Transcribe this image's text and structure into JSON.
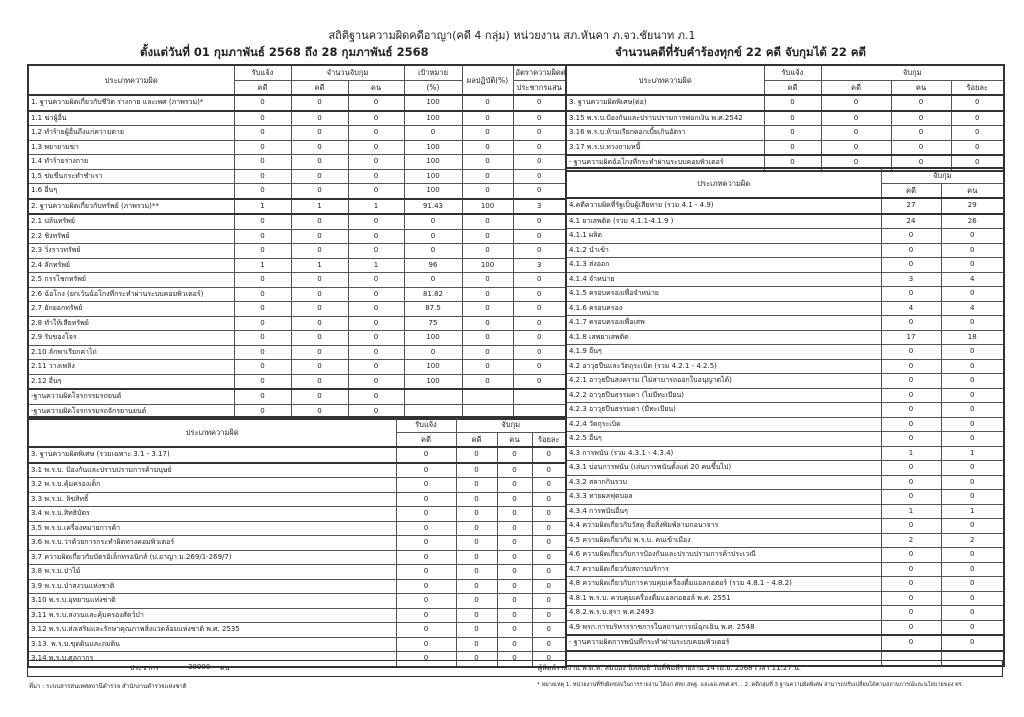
{
  "header": {
    "title": "สถิติฐานความผิดคดีอาญา(คดี 4 กลุ่ม) หน่วยงาน สภ.หันคา ภ.จว.ชัยนาท ภ.1",
    "period": "ตั้งแต่วันที่ 01 กุมภาพันธ์ 2568 ถึง 28 กุมภาพันธ์ 2568",
    "summary": "จำนวนคดีที่รับคำร้องทุกข์  22 คดี  จับกุมได้  22 คดี"
  },
  "left_table1": {
    "headers": {
      "type": "ประเภทความผิด",
      "received": "รับแจ้ง",
      "arrested": "จำนวนจับกุม",
      "target": "เป้าหมาย",
      "performance": "ผลปฏิบัติ(%)",
      "rate": "อัตราความผิดต่อ",
      "case": "คดี",
      "case2": "คดี",
      "person": "คน",
      "percent": "(%)",
      "rate2": "ประชากรแสน"
    },
    "rows": [
      [
        "1. ฐานความผิดเกี่ยวกับชีวิต ร่างกาย และเพศ (ภาพรวม)*",
        "0",
        "0",
        "0",
        "100",
        "0",
        "0"
      ],
      [
        "1.1 ฆ่าผู้อื่น",
        "0",
        "0",
        "0",
        "100",
        "0",
        "0"
      ],
      [
        "1.2 ทำร้ายผู้อื่นถึงแก่ความตาย",
        "0",
        "0",
        "0",
        "0",
        "0",
        "0"
      ],
      [
        "1.3 พยายามฆ่า",
        "0",
        "0",
        "0",
        "100",
        "0",
        "0"
      ],
      [
        "1.4 ทำร้ายร่างกาย",
        "0",
        "0",
        "0",
        "100",
        "0",
        "0"
      ],
      [
        "1.5 ข่มขืนกระทำชำเรา",
        "0",
        "0",
        "0",
        "100",
        "0",
        "0"
      ],
      [
        "1.6 อื่นๆ",
        "0",
        "0",
        "0",
        "100",
        "0",
        "0"
      ],
      [
        "2. ฐานความผิดเกี่ยวกับทรัพย์ (ภาพรวม)**",
        "1",
        "1",
        "1",
        "91.43",
        "100",
        "3"
      ],
      [
        "2.1 ปล้นทรัพย์",
        "0",
        "0",
        "0",
        "0",
        "0",
        "0"
      ],
      [
        "2.2 ชิงทรัพย์",
        "0",
        "0",
        "0",
        "0",
        "0",
        "0"
      ],
      [
        "2.3 วิ่งราวทรัพย์",
        "0",
        "0",
        "0",
        "0",
        "0",
        "0"
      ],
      [
        "2.4 ลักทรัพย์",
        "1",
        "1",
        "1",
        "96",
        "100",
        "3"
      ],
      [
        "2.5 กรรโชกทรัพย์",
        "0",
        "0",
        "0",
        "0",
        "0",
        "0"
      ],
      [
        "2.6 ฉ้อโกง (ยกเว้นฉ้อโกงที่กระทำผ่านระบบคอมพิวเตอร์)",
        "0",
        "0",
        "0",
        "81.82",
        "0",
        "0"
      ],
      [
        "2.7 ยักยอกทรัพย์",
        "0",
        "0",
        "0",
        "87.5",
        "0",
        "0"
      ],
      [
        "2.8 ทำให้เสียทรัพย์",
        "0",
        "0",
        "0",
        "75",
        "0",
        "0"
      ],
      [
        "2.9 รับของโจร",
        "0",
        "0",
        "0",
        "100",
        "0",
        "0"
      ],
      [
        "2.10 ลักพาเรียกค่าไถ่",
        "0",
        "0",
        "0",
        "0",
        "0",
        "0"
      ],
      [
        "2.11 วางเพลิง",
        "0",
        "0",
        "0",
        "100",
        "0",
        "0"
      ],
      [
        "2.12 อื่นๆ",
        "0",
        "0",
        "0",
        "100",
        "0",
        "0"
      ],
      [
        "-ฐานความผิดโจรกรรมรถยนต์",
        "0",
        "0",
        "0",
        "",
        "",
        ""
      ],
      [
        "-ฐานความผิดโจรกรรมรถจักรยานยนต์",
        "0",
        "0",
        "0",
        "",
        "",
        ""
      ]
    ]
  },
  "left_table2": {
    "headers": {
      "type": "ประเภทความผิด",
      "received": "รับแจ้ง",
      "arrested": "จับกุม",
      "case": "คดี",
      "case2": "คดี",
      "person": "คน",
      "percent": "ร้อยละ"
    },
    "rows": [
      [
        "3. ฐานความผิดพิเศษ (รวมเฉพาะ 3.1 - 3.17)",
        "0",
        "0",
        "0",
        "0"
      ],
      [
        "3.1 พ.ร.บ. ป้องกันและปราบปรามการค้ามนุษย์",
        "0",
        "0",
        "0",
        "0"
      ],
      [
        "3.2 พ.ร.บ.คุ้มครองเด็ก",
        "0",
        "0",
        "0",
        "0"
      ],
      [
        "3.3 พ.ร.บ. ลิขสิทธิ์",
        "0",
        "0",
        "0",
        "0"
      ],
      [
        "3.4 พ.ร.บ.สิทธิบัตร",
        "0",
        "0",
        "0",
        "0"
      ],
      [
        "3.5 พ.ร.บ.เครื่องหมายการค้า",
        "0",
        "0",
        "0",
        "0"
      ],
      [
        "3.6 พ.ร.บ.ว่าด้วยการกระทำผิดทางคอมพิวเตอร์",
        "0",
        "0",
        "0",
        "0"
      ],
      [
        "3.7 ความผิดเกี่ยวกับบัตรอิเล็กทรอนิกส์ (ป.อาญา ม.269/1-269/7)",
        "0",
        "0",
        "0",
        "0"
      ],
      [
        "3.8 พ.ร.บ.ป่าไม้",
        "0",
        "0",
        "0",
        "0"
      ],
      [
        "3.9 พ.ร.บ.ป่าสงวนแห่งชาติ",
        "0",
        "0",
        "0",
        "0"
      ],
      [
        "3.10 พ.ร.บ.อุทยานแห่งชาติ",
        "0",
        "0",
        "0",
        "0"
      ],
      [
        "3.11 พ.ร.บ.สงวนและคุ้มครองสัตว์ป่า",
        "0",
        "0",
        "0",
        "0"
      ],
      [
        "3.12 พ.ร.บ.ส่งเสริมและรักษาคุณภาพสิ่งแวดล้อมแห่งชาติ พ.ศ. 2535",
        "0",
        "0",
        "0",
        "0"
      ],
      [
        "3.13. พ.ร.บ.ขุดดินและถมดิน",
        "0",
        "0",
        "0",
        "0"
      ],
      [
        "3.14 พ.ร.บ.ศุลกากร",
        "0",
        "0",
        "0",
        "0"
      ]
    ],
    "population_label": "ประชากร",
    "population_value": "30000",
    "population_unit": "คน"
  },
  "right_table1": {
    "headers": {
      "type": "ประเภทความผิด",
      "received": "รับแจ้ง",
      "arrested": "จับกุม",
      "case": "คดี",
      "case2": "คดี",
      "person": "คน",
      "percent": "ร้อยละ"
    },
    "rows": [
      [
        "3. ฐานความผิดพิเศษ(ต่อ)",
        "0",
        "0",
        "0",
        "0"
      ],
      [
        "3.15 พ.ร.บ.ป้องกันและปราบปรามการฟอกเงิน พ.ศ.2542",
        "0",
        "0",
        "0",
        "0"
      ],
      [
        "3.16 พ.ร.บ.ห้ามเรียกดอกเบี้ยเกินอัตรา",
        "0",
        "0",
        "0",
        "0"
      ],
      [
        "3.17 พ.ร.บ.ทวงถามหนี้",
        "0",
        "0",
        "0",
        "0"
      ],
      [
        "- ฐานความผิดฉ้อโกงที่กระทำผ่านระบบคอมพิวเตอร์",
        "0",
        "0",
        "0",
        "0"
      ]
    ]
  },
  "right_table2": {
    "headers": {
      "type": "ประเภทความผิด",
      "arrested": "จับกุม",
      "case": "คดี",
      "person": "คน"
    },
    "rows": [
      [
        "4.คดีความผิดที่รัฐเป็นผู้เสียหาย (รวม 4.1 - 4.9)",
        "27",
        "29"
      ],
      [
        "4.1 ยาเสพติด (รวม 4.1.1-4.1.9 )",
        "24",
        "26"
      ],
      [
        "4.1.1 ผลิต",
        "0",
        "0"
      ],
      [
        "4.1.2 นำเข้า",
        "0",
        "0"
      ],
      [
        "4.1.3 ส่งออก",
        "0",
        "0"
      ],
      [
        "4.1.4 จำหน่าย",
        "3",
        "4"
      ],
      [
        "4.1.5 ครอบครองเพื่อจำหน่าย",
        "0",
        "0"
      ],
      [
        "4.1.6 ครอบครอง",
        "4",
        "4"
      ],
      [
        "4.1.7 ครอบครองเพื่อเสพ",
        "0",
        "0"
      ],
      [
        "4.1.8 เสพยาเสพติด",
        "17",
        "18"
      ],
      [
        "4.1.9 อื่นๆ",
        "0",
        "0"
      ],
      [
        "4.2 อาวุธปืนและวัตถุระเบิด (รวม 4.2.1 - 4.2.5)",
        "0",
        "0"
      ],
      [
        "4.2.1 อาวุธปืนสงคราม (ไม่สามารถออกใบอนุญาตได้)",
        "0",
        "0"
      ],
      [
        "4.2.2 อาวุธปืนธรรมดา (ไม่มีทะเบียน)",
        "0",
        "0"
      ],
      [
        "4.2.3 อาวุธปืนธรรมดา (มีทะเบียน)",
        "0",
        "0"
      ],
      [
        "4.2.4 วัตถุระเบิด",
        "0",
        "0"
      ],
      [
        "4.2.5 อื่นๆ",
        "0",
        "0"
      ],
      [
        "4.3 การพนัน (รวม 4.3.1 - 4.3.4)",
        "1",
        "1"
      ],
      [
        "4.3.1 บ่อนการพนัน (เล่นการพนันตั้งแต่ 20 คนขึ้นไป)",
        "0",
        "0"
      ],
      [
        "4.3.2 สลากกินรวบ",
        "0",
        "0"
      ],
      [
        "4.3.3 ทายผลฟุตบอล",
        "0",
        "0"
      ],
      [
        "4.3.4 การพนันอื่นๆ",
        "1",
        "1"
      ],
      [
        "4.4 ความผิดเกี่ยวกับวัสดุ สื่อสิ่งพิมพ์ลามกอนาจาร",
        "0",
        "0"
      ],
      [
        "4.5 ความผิดเกี่ยวกับ พ.ร.บ. คนเข้าเมือง",
        "2",
        "2"
      ],
      [
        "4.6 ความผิดเกี่ยวกับการป้องกันและปราบปรามการค้าประเวณี",
        "0",
        "0"
      ],
      [
        "4.7 ความผิดเกี่ยวกับสถานบริการ",
        "0",
        "0"
      ],
      [
        "4.8 ความผิดเกี่ยวกับการควบคุมเครื่องดื่มแอลกอฮอร์ (รวม 4.8.1 - 4.8.2)",
        "0",
        "0"
      ],
      [
        "4.8.1 พ.ร.บ. ควบคุมเครื่องดื่มแอลกอฮอล์ พ.ศ. 2551",
        "0",
        "0"
      ],
      [
        "4.8.2.พ.ร.บ.สุรา พ.ศ.2493",
        "0",
        "0"
      ],
      [
        "4.9 พรก.การบริหารราชการในสถานการณ์ฉุกเฉิน พ.ศ. 2548",
        "0",
        "0"
      ],
      [
        "- ฐานความผิดการพนันที่กระทำผ่านระบบคอมพิวเตอร์",
        "0",
        "0"
      ],
      [
        "",
        "",
        ""
      ]
    ]
  },
  "footer": {
    "printer": "ผู้พิมพ์รายงาน พ.ต.ท. สมปอง นิลสนธิ วันที่พิมพ์รายงาน 14 เม.ย. 2568 เวลา 11:27 น.",
    "source": "ที่มา : ระบบสารสนเทศสถานีตำรวจ สำนักงานตำรวจแห่งชาติ",
    "note": "* หมายเหตุ 1. หน่วยงานที่รับผิดชอบในการรายงาน ได้แก่ ศทก.สพฐ. และผอ.สขศ.ตร. , 2. คดีกลุ่มที่ 3 ฐานความผิดพิเศษ สามารถปรับเปลี่ยนได้ตามสถานการณ์และนโยบายของ ตร."
  }
}
